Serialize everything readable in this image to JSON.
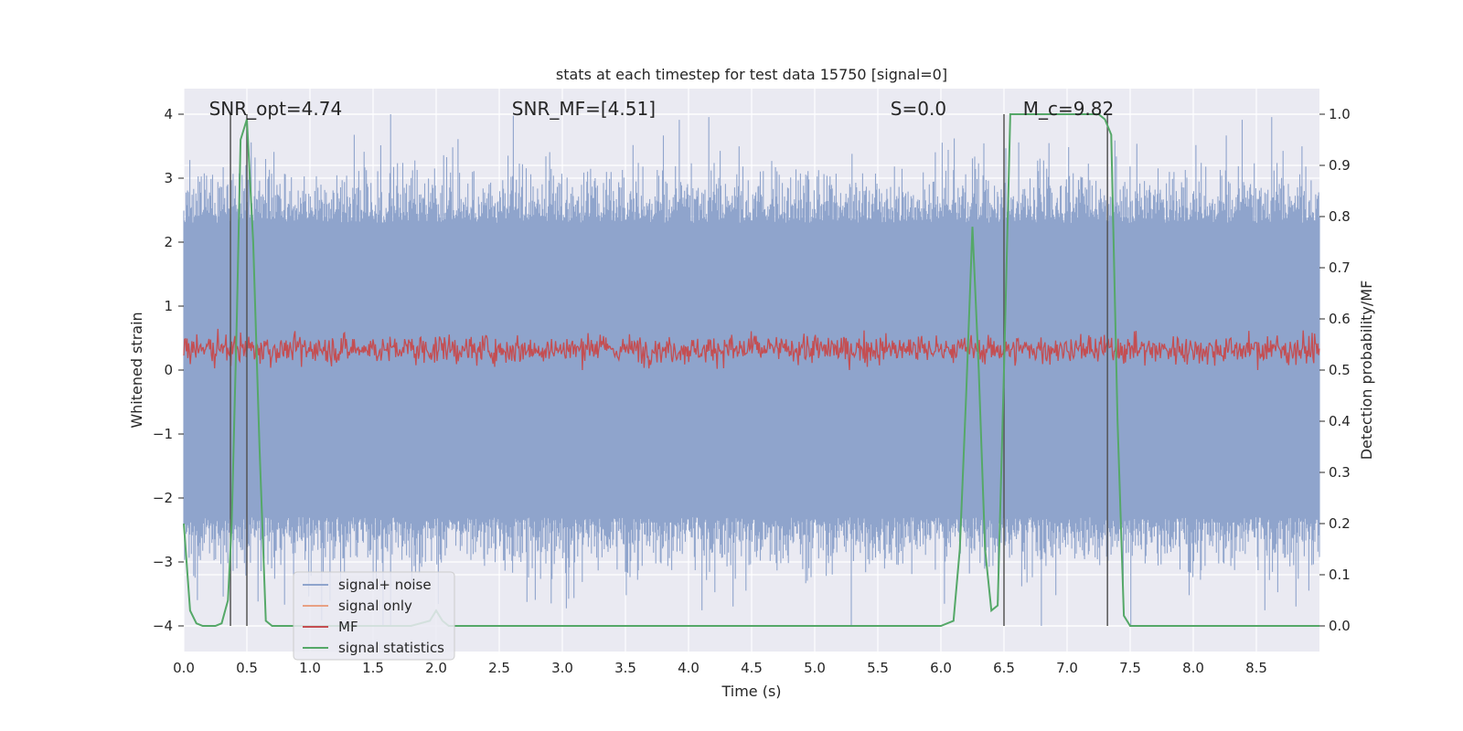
{
  "chart_data": {
    "type": "line",
    "title": "stats at each timestep for test data 15750 [signal=0]",
    "xlabel": "Time (s)",
    "ylabel_left": "Whitened strain",
    "ylabel_right": "Detection probability/MF",
    "xlim": [
      0.0,
      9.0
    ],
    "ylim_left": [
      -4.4,
      4.4
    ],
    "ylim_right": [
      -0.05,
      1.05
    ],
    "x_ticks": [
      "0.0",
      "0.5",
      "1.0",
      "1.5",
      "2.0",
      "2.5",
      "3.0",
      "3.5",
      "4.0",
      "4.5",
      "5.0",
      "5.5",
      "6.0",
      "6.5",
      "7.0",
      "7.5",
      "8.0",
      "8.5"
    ],
    "x_tick_values": [
      0.0,
      0.5,
      1.0,
      1.5,
      2.0,
      2.5,
      3.0,
      3.5,
      4.0,
      4.5,
      5.0,
      5.5,
      6.0,
      6.5,
      7.0,
      7.5,
      8.0,
      8.5
    ],
    "y_left_ticks": [
      "4",
      "3",
      "2",
      "1",
      "0",
      "−1",
      "−2",
      "−3",
      "−4"
    ],
    "y_left_tick_values": [
      4,
      3,
      2,
      1,
      0,
      -1,
      -2,
      -3,
      -4
    ],
    "y_right_ticks": [
      "1.0",
      "0.9",
      "0.8",
      "0.7",
      "0.6",
      "0.5",
      "0.4",
      "0.3",
      "0.2",
      "0.1",
      "0.0"
    ],
    "y_right_tick_values": [
      1.0,
      0.9,
      0.8,
      0.7,
      0.6,
      0.5,
      0.4,
      0.3,
      0.2,
      0.1,
      0.0
    ],
    "annotations": [
      {
        "text": "SNR_opt=4.74",
        "x": 0.2,
        "y": 4.0
      },
      {
        "text": "SNR_MF=[4.51]",
        "x": 2.6,
        "y": 4.0
      },
      {
        "text": "S=0.0",
        "x": 5.6,
        "y": 4.0
      },
      {
        "text": "M_c=9.82",
        "x": 6.65,
        "y": 4.0
      }
    ],
    "vertical_lines_x": [
      0.37,
      0.5,
      6.5,
      7.32
    ],
    "legend": {
      "position": "lower-left",
      "entries": [
        {
          "label": "signal+ noise",
          "color": "#8fa4cc"
        },
        {
          "label": "signal only",
          "color": "#e8a083"
        },
        {
          "label": "MF",
          "color": "#c44e52"
        },
        {
          "label": "signal statistics",
          "color": "#55a868"
        }
      ]
    },
    "series": [
      {
        "name": "signal+ noise",
        "axis": "left",
        "color": "#8fa4cc",
        "description": "whitened strain noise, roughly uniform envelope",
        "typical_envelope": [
          -2.3,
          2.3
        ],
        "peak_max": 4.0,
        "peak_min": -4.0
      },
      {
        "name": "signal only",
        "axis": "left",
        "color": "#e8a083",
        "values": []
      },
      {
        "name": "MF",
        "axis": "right",
        "color": "#c44e52",
        "typical_range": [
          0.5,
          0.59
        ],
        "peak_max": 0.6
      },
      {
        "name": "signal statistics",
        "axis": "right",
        "color": "#55a868",
        "x": [
          0.0,
          0.05,
          0.1,
          0.15,
          0.2,
          0.25,
          0.3,
          0.35,
          0.38,
          0.42,
          0.45,
          0.5,
          0.55,
          0.6,
          0.65,
          0.7,
          1.5,
          1.8,
          1.95,
          2.0,
          2.05,
          2.1,
          2.5,
          3.0,
          4.0,
          5.0,
          6.0,
          6.1,
          6.15,
          6.2,
          6.25,
          6.3,
          6.35,
          6.4,
          6.45,
          6.5,
          6.55,
          6.6,
          6.7,
          7.0,
          7.2,
          7.25,
          7.3,
          7.35,
          7.4,
          7.45,
          7.5,
          8.0,
          8.5,
          9.0
        ],
        "y": [
          0.2,
          0.03,
          0.005,
          0.0,
          0.0,
          0.0,
          0.005,
          0.05,
          0.2,
          0.6,
          0.95,
          0.99,
          0.75,
          0.35,
          0.01,
          0.0,
          0.0,
          0.0,
          0.01,
          0.03,
          0.01,
          0.0,
          0.0,
          0.0,
          0.0,
          0.0,
          0.0,
          0.01,
          0.15,
          0.45,
          0.78,
          0.5,
          0.15,
          0.03,
          0.04,
          0.5,
          1.0,
          1.0,
          1.0,
          1.0,
          1.0,
          1.0,
          0.99,
          0.96,
          0.4,
          0.02,
          0.0,
          0.0,
          0.0,
          0.0
        ]
      }
    ]
  }
}
